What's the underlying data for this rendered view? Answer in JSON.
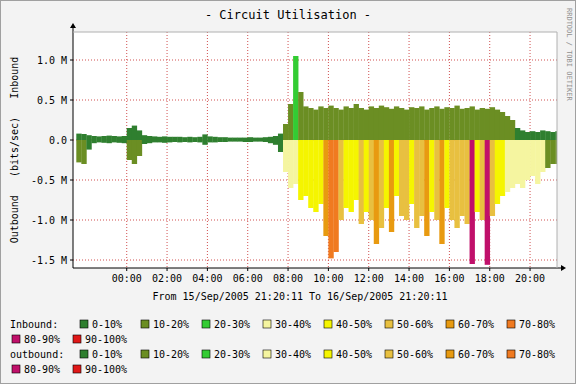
{
  "chart_data": {
    "type": "bar",
    "title": "- Circuit Utilisation -",
    "ylabel": "Outbound   (bits/sec)   Inbound",
    "xlabel": "From 15/Sep/2005 21:20:11 To 16/Sep/2005 21:20:11",
    "annotations": [
      "RRDTOOL / TOBI OETIKER"
    ],
    "grid": true,
    "legend": "bottom",
    "xlim": [
      -2.664,
      21.336
    ],
    "xticks": [
      {
        "value": 0,
        "label": "00:00"
      },
      {
        "value": 2,
        "label": "02:00"
      },
      {
        "value": 4,
        "label": "04:00"
      },
      {
        "value": 6,
        "label": "06:00"
      },
      {
        "value": 8,
        "label": "08:00"
      },
      {
        "value": 10,
        "label": "10:00"
      },
      {
        "value": 12,
        "label": "12:00"
      },
      {
        "value": 14,
        "label": "14:00"
      },
      {
        "value": 16,
        "label": "16:00"
      },
      {
        "value": 18,
        "label": "18:00"
      },
      {
        "value": 20,
        "label": "20:00"
      }
    ],
    "ylim": [
      -1600000,
      1350000
    ],
    "yticks": [
      {
        "value": 1000000,
        "label": "1.0 M"
      },
      {
        "value": 500000,
        "label": "0.5 M"
      },
      {
        "value": 0,
        "label": "0.0"
      },
      {
        "value": -500000,
        "label": "-0.5 M"
      },
      {
        "value": -1000000,
        "label": "-1.0 M"
      },
      {
        "value": -1500000,
        "label": "-1.5 M"
      }
    ],
    "legend_items": [
      {
        "name": "0-10%",
        "color": "#2f7f2f"
      },
      {
        "name": "10-20%",
        "color": "#6b8e23"
      },
      {
        "name": "20-30%",
        "color": "#33cc33"
      },
      {
        "name": "30-40%",
        "color": "#f5f5a0"
      },
      {
        "name": "40-50%",
        "color": "#f5f500"
      },
      {
        "name": "50-60%",
        "color": "#e8c040"
      },
      {
        "name": "60-70%",
        "color": "#e89a10"
      },
      {
        "name": "70-80%",
        "color": "#f07a20"
      },
      {
        "name": "80-90%",
        "color": "#c0106a"
      },
      {
        "name": "90-100%",
        "color": "#e01818"
      }
    ],
    "x": [
      -2.5,
      -2.25,
      -2,
      -1.75,
      -1.5,
      -1.25,
      -1,
      -0.75,
      -0.5,
      -0.25,
      0,
      0.25,
      0.5,
      0.75,
      1,
      1.25,
      1.5,
      1.75,
      2,
      2.25,
      2.5,
      2.75,
      3,
      3.25,
      3.5,
      3.75,
      4,
      4.25,
      4.5,
      4.75,
      5,
      5.25,
      5.5,
      5.75,
      6,
      6.25,
      6.5,
      6.75,
      7,
      7.25,
      7.5,
      7.75,
      8,
      8.25,
      8.5,
      8.75,
      9,
      9.25,
      9.5,
      9.75,
      10,
      10.25,
      10.5,
      10.75,
      11,
      11.25,
      11.5,
      11.75,
      12,
      12.25,
      12.5,
      12.75,
      13,
      13.25,
      13.5,
      13.75,
      14,
      14.25,
      14.5,
      14.75,
      15,
      15.25,
      15.5,
      15.75,
      16,
      16.25,
      16.5,
      16.75,
      17,
      17.25,
      17.5,
      17.75,
      18,
      18.25,
      18.5,
      18.75,
      19,
      19.25,
      19.5,
      19.75,
      20,
      20.25,
      20.5,
      20.75,
      21,
      21.25
    ],
    "series": [
      {
        "name": "Inbound:",
        "values": [
          80000,
          75000,
          60000,
          50000,
          45000,
          50000,
          55000,
          50000,
          45000,
          50000,
          150000,
          180000,
          120000,
          60000,
          50000,
          45000,
          40000,
          45000,
          40000,
          40000,
          40000,
          35000,
          40000,
          35000,
          40000,
          70000,
          45000,
          40000,
          35000,
          35000,
          30000,
          30000,
          30000,
          30000,
          35000,
          30000,
          30000,
          35000,
          40000,
          50000,
          80000,
          200000,
          450000,
          1050000,
          600000,
          420000,
          400000,
          380000,
          420000,
          400000,
          430000,
          400000,
          380000,
          420000,
          400000,
          450000,
          400000,
          380000,
          420000,
          400000,
          430000,
          410000,
          390000,
          420000,
          400000,
          380000,
          410000,
          400000,
          420000,
          380000,
          400000,
          420000,
          390000,
          410000,
          400000,
          430000,
          390000,
          400000,
          420000,
          380000,
          400000,
          390000,
          410000,
          380000,
          350000,
          300000,
          250000,
          150000,
          120000,
          100000,
          110000,
          100000,
          120000,
          110000,
          100000,
          110000
        ],
        "colors": [
          "#2f7f2f",
          "#2f7f2f",
          "#2f7f2f",
          "#2f7f2f",
          "#2f7f2f",
          "#2f7f2f",
          "#2f7f2f",
          "#2f7f2f",
          "#2f7f2f",
          "#2f7f2f",
          "#2f7f2f",
          "#2f7f2f",
          "#2f7f2f",
          "#2f7f2f",
          "#2f7f2f",
          "#2f7f2f",
          "#2f7f2f",
          "#2f7f2f",
          "#2f7f2f",
          "#2f7f2f",
          "#2f7f2f",
          "#2f7f2f",
          "#2f7f2f",
          "#2f7f2f",
          "#2f7f2f",
          "#2f7f2f",
          "#2f7f2f",
          "#2f7f2f",
          "#2f7f2f",
          "#2f7f2f",
          "#2f7f2f",
          "#2f7f2f",
          "#2f7f2f",
          "#2f7f2f",
          "#2f7f2f",
          "#2f7f2f",
          "#2f7f2f",
          "#2f7f2f",
          "#2f7f2f",
          "#2f7f2f",
          "#2f7f2f",
          "#6b8e23",
          "#6b8e23",
          "#33cc33",
          "#6b8e23",
          "#6b8e23",
          "#6b8e23",
          "#6b8e23",
          "#6b8e23",
          "#6b8e23",
          "#6b8e23",
          "#6b8e23",
          "#6b8e23",
          "#6b8e23",
          "#6b8e23",
          "#6b8e23",
          "#6b8e23",
          "#6b8e23",
          "#6b8e23",
          "#6b8e23",
          "#6b8e23",
          "#6b8e23",
          "#6b8e23",
          "#6b8e23",
          "#6b8e23",
          "#6b8e23",
          "#6b8e23",
          "#6b8e23",
          "#6b8e23",
          "#6b8e23",
          "#6b8e23",
          "#6b8e23",
          "#6b8e23",
          "#6b8e23",
          "#6b8e23",
          "#6b8e23",
          "#6b8e23",
          "#6b8e23",
          "#6b8e23",
          "#6b8e23",
          "#6b8e23",
          "#6b8e23",
          "#6b8e23",
          "#6b8e23",
          "#6b8e23",
          "#6b8e23",
          "#6b8e23",
          "#2f7f2f",
          "#2f7f2f",
          "#2f7f2f",
          "#2f7f2f",
          "#2f7f2f",
          "#2f7f2f",
          "#2f7f2f",
          "#2f7f2f",
          "#2f7f2f"
        ]
      },
      {
        "name": "outbound:",
        "values": [
          -280000,
          -300000,
          -120000,
          -40000,
          -30000,
          -35000,
          -40000,
          -30000,
          -35000,
          -40000,
          -250000,
          -300000,
          -200000,
          -50000,
          -40000,
          -30000,
          -30000,
          -35000,
          -30000,
          -25000,
          -30000,
          -25000,
          -30000,
          -25000,
          -30000,
          -60000,
          -30000,
          -30000,
          -25000,
          -25000,
          -20000,
          -20000,
          -20000,
          -25000,
          -25000,
          -20000,
          -20000,
          -25000,
          -40000,
          -60000,
          -150000,
          -400000,
          -600000,
          -550000,
          -750000,
          -700000,
          -850000,
          -900000,
          -800000,
          -1200000,
          -1480000,
          -1400000,
          -1000000,
          -850000,
          -900000,
          -750000,
          -1050000,
          -900000,
          -1000000,
          -1300000,
          -1100000,
          -850000,
          -1150000,
          -700000,
          -950000,
          -1000000,
          -800000,
          -1100000,
          -950000,
          -1200000,
          -900000,
          -1000000,
          -1300000,
          -850000,
          -1000000,
          -1100000,
          -950000,
          -1050000,
          -1550000,
          -900000,
          -1000000,
          -1560000,
          -950000,
          -800000,
          -700000,
          -650000,
          -600000,
          -550000,
          -600000,
          -500000,
          -450000,
          -550000,
          -400000,
          -350000,
          -300000,
          -300000
        ],
        "colors": [
          "#6b8e23",
          "#6b8e23",
          "#2f7f2f",
          "#2f7f2f",
          "#2f7f2f",
          "#2f7f2f",
          "#2f7f2f",
          "#2f7f2f",
          "#2f7f2f",
          "#2f7f2f",
          "#6b8e23",
          "#6b8e23",
          "#6b8e23",
          "#2f7f2f",
          "#2f7f2f",
          "#2f7f2f",
          "#2f7f2f",
          "#2f7f2f",
          "#2f7f2f",
          "#2f7f2f",
          "#2f7f2f",
          "#2f7f2f",
          "#2f7f2f",
          "#2f7f2f",
          "#2f7f2f",
          "#2f7f2f",
          "#2f7f2f",
          "#2f7f2f",
          "#2f7f2f",
          "#2f7f2f",
          "#2f7f2f",
          "#2f7f2f",
          "#2f7f2f",
          "#2f7f2f",
          "#2f7f2f",
          "#2f7f2f",
          "#2f7f2f",
          "#2f7f2f",
          "#2f7f2f",
          "#2f7f2f",
          "#2f7f2f",
          "#f5f5a0",
          "#f5f5a0",
          "#f5f5a0",
          "#f5f500",
          "#f5f500",
          "#f5f500",
          "#f5f500",
          "#f5f500",
          "#e89a10",
          "#f07a20",
          "#f07a20",
          "#e8c040",
          "#f5f500",
          "#f5f500",
          "#f5f500",
          "#e8c040",
          "#f5f500",
          "#e8c040",
          "#e89a10",
          "#e8c040",
          "#f5f500",
          "#e89a10",
          "#f5f500",
          "#e8c040",
          "#e8c040",
          "#f5f500",
          "#e8c040",
          "#e8c040",
          "#e89a10",
          "#f5f500",
          "#e8c040",
          "#e89a10",
          "#f5f500",
          "#e8c040",
          "#e8c040",
          "#e8c040",
          "#e8c040",
          "#c0106a",
          "#f5f500",
          "#e8c040",
          "#c0106a",
          "#e8c040",
          "#f5f500",
          "#f5f500",
          "#f5f5a0",
          "#f5f5a0",
          "#f5f5a0",
          "#f5f5a0",
          "#f5f5a0",
          "#f5f5a0",
          "#f5f5a0",
          "#f5f5a0",
          "#6b8e23",
          "#6b8e23",
          "#6b8e23"
        ]
      }
    ]
  }
}
